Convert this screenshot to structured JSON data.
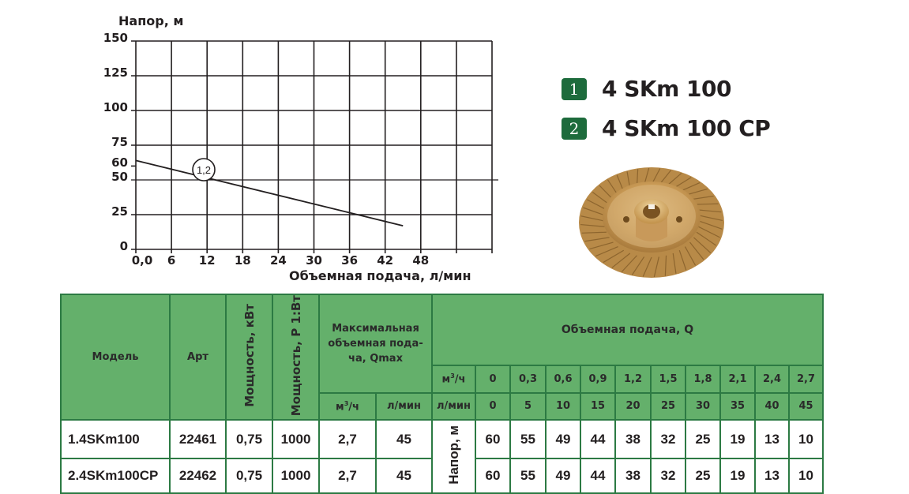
{
  "chart_data": {
    "type": "line",
    "title": "",
    "ylabel": "Напор, м",
    "xlabel": "Объемная подача, л/мин",
    "y_ticks": [
      0,
      25,
      50,
      60,
      75,
      100,
      125,
      150
    ],
    "x_ticks": [
      "0,0",
      "6",
      "12",
      "18",
      "24",
      "30",
      "36",
      "42",
      "48"
    ],
    "xlim": [
      0,
      60
    ],
    "ylim": [
      0,
      150
    ],
    "grid": true,
    "legend": "right",
    "series": [
      {
        "name": "1,2",
        "x": [
          0,
          5,
          10,
          15,
          20,
          25,
          30,
          35,
          40,
          45
        ],
        "values": [
          60,
          55,
          49,
          44,
          38,
          32,
          25,
          19,
          13,
          10
        ]
      }
    ],
    "annotations": [
      {
        "text": "1,2",
        "x": 11,
        "y": 56
      }
    ]
  },
  "chart": {
    "y_title": "Напор, м",
    "x_title": "Объемная подача, л/мин",
    "curve_label": "1,2"
  },
  "legend": [
    {
      "badge": "1",
      "label": "4 SKm 100"
    },
    {
      "badge": "2",
      "label": "4 SKm 100 CP"
    }
  ],
  "colors": {
    "header_green": "#64b06b",
    "border_green": "#2c7a43",
    "badge_green": "#1d6b3c"
  },
  "table": {
    "headers": {
      "model": "Модель",
      "art": "Арт",
      "power_kw": "Мощность, кВт",
      "power_p1": "Мощность, P 1:Вт",
      "qmax": "Максимальная объемная пода-ча, Qmax",
      "qmax_m3h": "м³/ч",
      "qmax_lmin": "л/мин",
      "flow": "Объемная подача, Q",
      "unit_m3h": "м³/ч",
      "unit_lmin": "л/мин",
      "head": "Напор, м"
    },
    "flow_m3h": [
      "0",
      "0,3",
      "0,6",
      "0,9",
      "1,2",
      "1,5",
      "1,8",
      "2,1",
      "2,4",
      "2,7"
    ],
    "flow_lmin": [
      "0",
      "5",
      "10",
      "15",
      "20",
      "25",
      "30",
      "35",
      "40",
      "45"
    ],
    "rows": [
      {
        "model": "1.4SKm100",
        "art": "22461",
        "power_kw": "0,75",
        "power_p1": "1000",
        "qmax_m3h": "2,7",
        "qmax_lmin": "45",
        "head": [
          "60",
          "55",
          "49",
          "44",
          "38",
          "32",
          "25",
          "19",
          "13",
          "10"
        ]
      },
      {
        "model": "2.4SKm100CP",
        "art": "22462",
        "power_kw": "0,75",
        "power_p1": "1000",
        "qmax_m3h": "2,7",
        "qmax_lmin": "45",
        "head": [
          "60",
          "55",
          "49",
          "44",
          "38",
          "32",
          "25",
          "19",
          "13",
          "10"
        ]
      }
    ]
  }
}
